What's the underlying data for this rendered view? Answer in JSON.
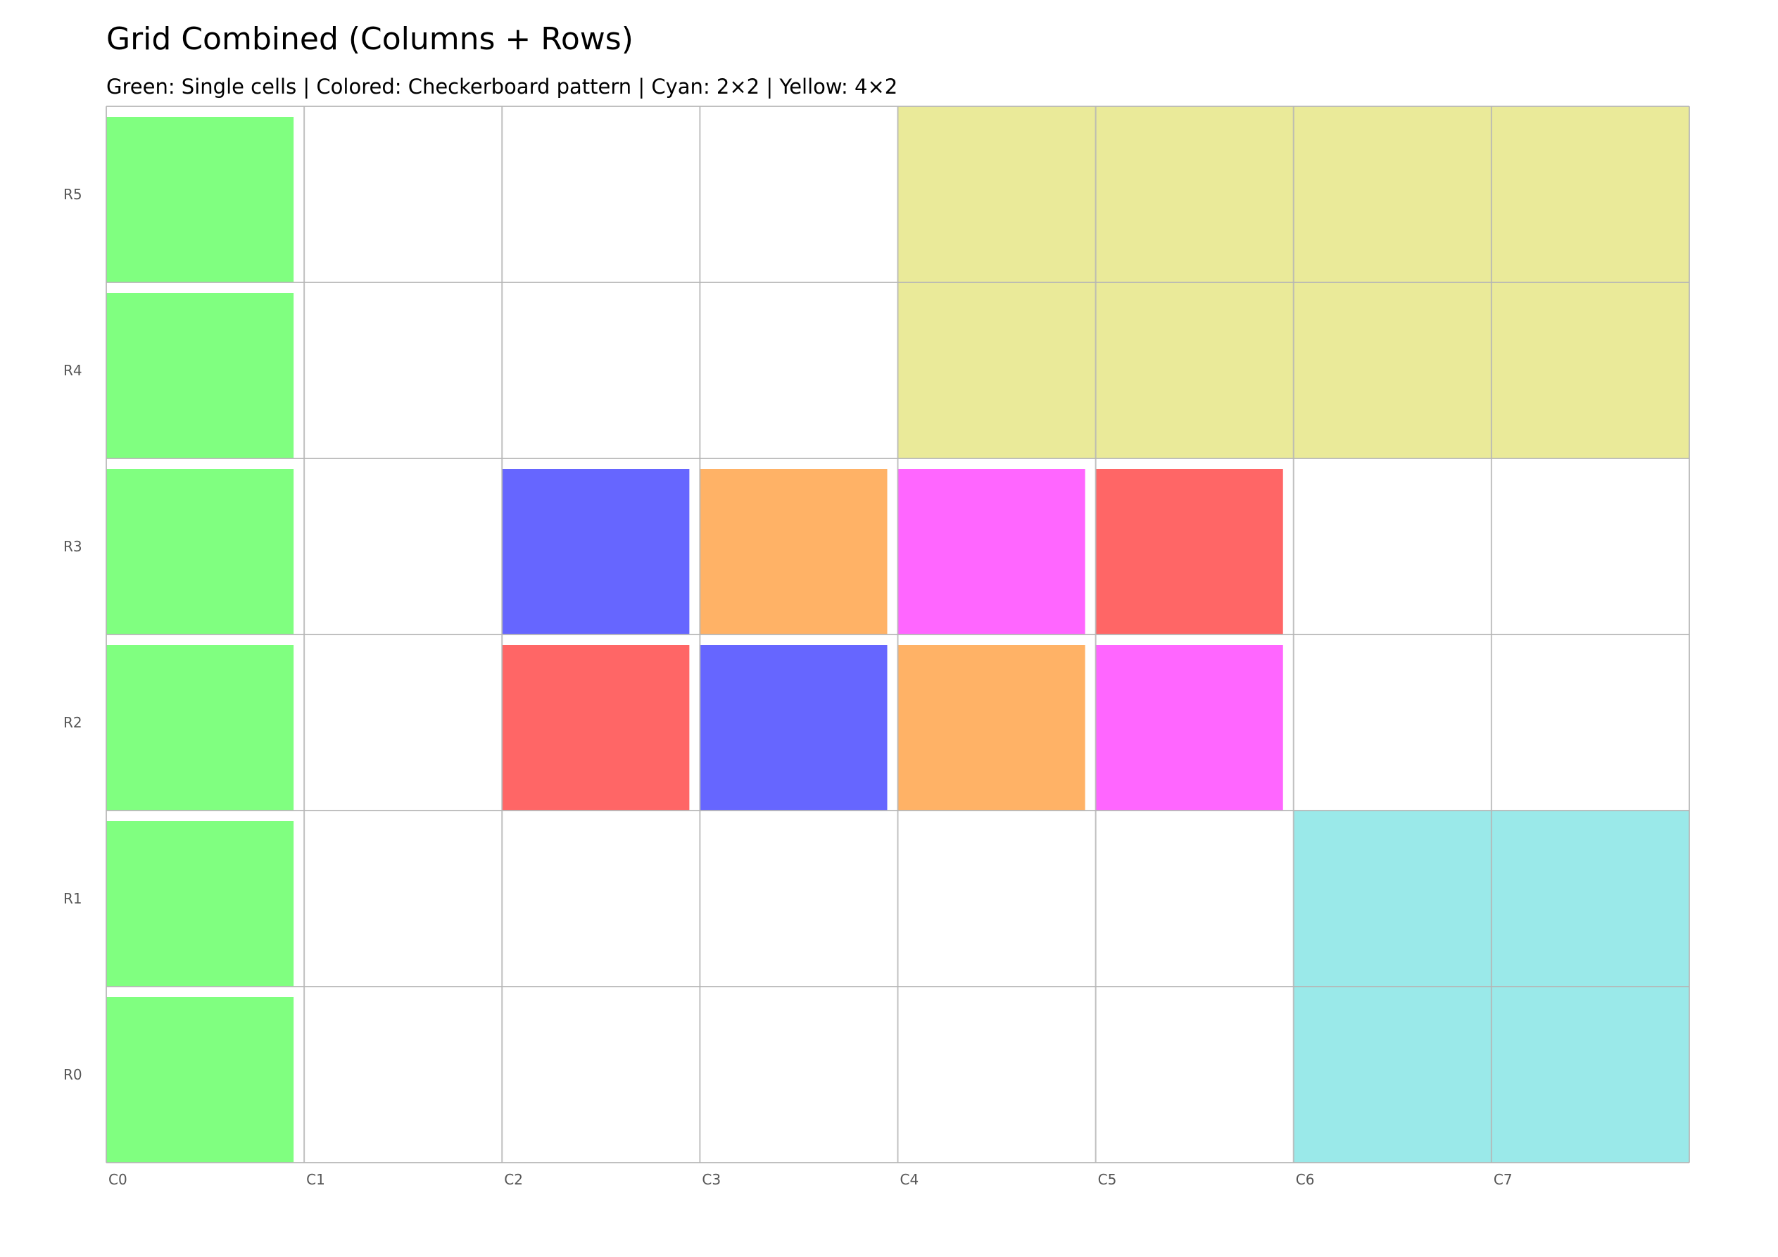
{
  "title": "Grid Combined (Columns + Rows)",
  "subtitle": "Green: Single cells | Colored: Checkerboard pattern | Cyan: 2×2 | Yellow: 4×2",
  "chart_data": {
    "type": "grid",
    "columns": [
      "C0",
      "C1",
      "C2",
      "C3",
      "C4",
      "C5",
      "C6",
      "C7"
    ],
    "rows": [
      "R0",
      "R1",
      "R2",
      "R3",
      "R4",
      "R5"
    ],
    "cells": [
      {
        "col": 0,
        "row": 0,
        "colspan": 1,
        "rowspan": 1,
        "color": "#80ff80",
        "kind": "single"
      },
      {
        "col": 0,
        "row": 1,
        "colspan": 1,
        "rowspan": 1,
        "color": "#80ff80",
        "kind": "single"
      },
      {
        "col": 0,
        "row": 2,
        "colspan": 1,
        "rowspan": 1,
        "color": "#80ff80",
        "kind": "single"
      },
      {
        "col": 0,
        "row": 3,
        "colspan": 1,
        "rowspan": 1,
        "color": "#80ff80",
        "kind": "single"
      },
      {
        "col": 0,
        "row": 4,
        "colspan": 1,
        "rowspan": 1,
        "color": "#80ff80",
        "kind": "single"
      },
      {
        "col": 0,
        "row": 5,
        "colspan": 1,
        "rowspan": 1,
        "color": "#80ff80",
        "kind": "single"
      },
      {
        "col": 2,
        "row": 2,
        "colspan": 1,
        "rowspan": 1,
        "color": "#ff6666",
        "kind": "checker"
      },
      {
        "col": 3,
        "row": 2,
        "colspan": 1,
        "rowspan": 1,
        "color": "#6666ff",
        "kind": "checker"
      },
      {
        "col": 4,
        "row": 2,
        "colspan": 1,
        "rowspan": 1,
        "color": "#ffb266",
        "kind": "checker"
      },
      {
        "col": 5,
        "row": 2,
        "colspan": 1,
        "rowspan": 1,
        "color": "#ff66ff",
        "kind": "checker"
      },
      {
        "col": 2,
        "row": 3,
        "colspan": 1,
        "rowspan": 1,
        "color": "#6666ff",
        "kind": "checker"
      },
      {
        "col": 3,
        "row": 3,
        "colspan": 1,
        "rowspan": 1,
        "color": "#ffb266",
        "kind": "checker"
      },
      {
        "col": 4,
        "row": 3,
        "colspan": 1,
        "rowspan": 1,
        "color": "#ff66ff",
        "kind": "checker"
      },
      {
        "col": 5,
        "row": 3,
        "colspan": 1,
        "rowspan": 1,
        "color": "#ff6666",
        "kind": "checker"
      },
      {
        "col": 6,
        "row": 0,
        "colspan": 2,
        "rowspan": 2,
        "color": "#9ae9e9",
        "kind": "span"
      },
      {
        "col": 4,
        "row": 4,
        "colspan": 4,
        "rowspan": 2,
        "color": "#eaea99",
        "kind": "span"
      }
    ],
    "gridlines": true,
    "gridline_color": "#b5b5b5"
  }
}
